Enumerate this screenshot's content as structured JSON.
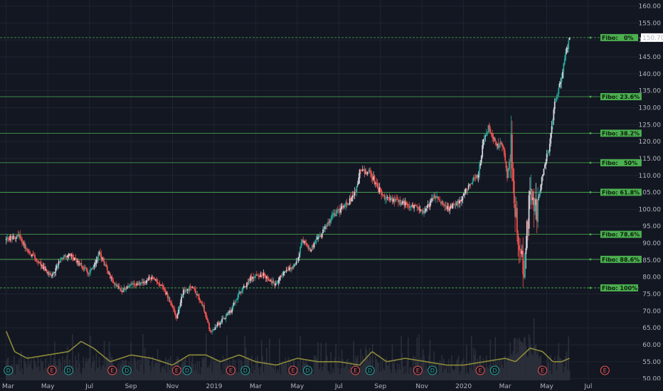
{
  "chart_data": {
    "type": "candlestick",
    "price_axis": {
      "ticks": [
        50,
        55,
        60,
        65,
        70,
        75,
        80,
        85,
        90,
        95,
        100,
        105,
        110,
        115,
        120,
        125,
        130,
        135,
        140,
        145,
        150,
        155,
        160
      ],
      "tick_labels": [
        "50.00",
        "55.00",
        "60.00",
        "65.00",
        "70.00",
        "75.00",
        "80.00",
        "85.00",
        "90.00",
        "95.00",
        "100.00",
        "105.00",
        "110.00",
        "115.00",
        "120.00",
        "125.00",
        "130.00",
        "135.00",
        "140.00",
        "145.00",
        "150.00",
        "155.00",
        "160.00"
      ],
      "ylim": [
        49.5,
        161.8
      ]
    },
    "time_axis": {
      "labels": [
        "Mar",
        "May",
        "Jul",
        "Sep",
        "Nov",
        "2019",
        "Mar",
        "May",
        "Jul",
        "Sep",
        "Nov",
        "2020",
        "Mar",
        "May",
        "Jul"
      ],
      "label_months": [
        0,
        2,
        4,
        6,
        8,
        10,
        12,
        14,
        16,
        18,
        20,
        22,
        24,
        26,
        28
      ],
      "xlim_months": [
        -0.3,
        30.5
      ]
    },
    "last_price": {
      "value": 150.7,
      "label": "150.70"
    },
    "fibonacci": {
      "low": 76.8,
      "high": 150.7,
      "levels": [
        {
          "label": "Fibo:   0%",
          "ratio": 0
        },
        {
          "label": "Fibo: 23.6%",
          "ratio": 0.236
        },
        {
          "label": "Fibo: 38.2%",
          "ratio": 0.382
        },
        {
          "label": "Fibo:   50%",
          "ratio": 0.5
        },
        {
          "label": "Fibo: 61.8%",
          "ratio": 0.618
        },
        {
          "label": "Fibo: 78.6%",
          "ratio": 0.786
        },
        {
          "label": "Fibo: 88.6%",
          "ratio": 0.886
        },
        {
          "label": "Fibo: 100%",
          "ratio": 1.0
        }
      ]
    },
    "close_anchors": [
      [
        0.0,
        91
      ],
      [
        0.6,
        92.5
      ],
      [
        1.0,
        88
      ],
      [
        1.6,
        84
      ],
      [
        2.2,
        80
      ],
      [
        2.6,
        85
      ],
      [
        3.0,
        87
      ],
      [
        3.5,
        84
      ],
      [
        4.0,
        81
      ],
      [
        4.5,
        87
      ],
      [
        5.0,
        80
      ],
      [
        5.5,
        76
      ],
      [
        6.0,
        78
      ],
      [
        6.5,
        78
      ],
      [
        7.0,
        80
      ],
      [
        7.5,
        77
      ],
      [
        7.8,
        74
      ],
      [
        8.2,
        68
      ],
      [
        8.5,
        76
      ],
      [
        9.0,
        77
      ],
      [
        9.5,
        71
      ],
      [
        9.8,
        64
      ],
      [
        10.2,
        66
      ],
      [
        10.8,
        70
      ],
      [
        11.2,
        75
      ],
      [
        11.8,
        80
      ],
      [
        12.3,
        81
      ],
      [
        12.9,
        78
      ],
      [
        13.5,
        82
      ],
      [
        14.0,
        84
      ],
      [
        14.2,
        91
      ],
      [
        14.6,
        88
      ],
      [
        15.2,
        93
      ],
      [
        15.7,
        98
      ],
      [
        16.3,
        101
      ],
      [
        16.8,
        105
      ],
      [
        17.0,
        111
      ],
      [
        17.5,
        111
      ],
      [
        17.9,
        106
      ],
      [
        18.3,
        103
      ],
      [
        18.9,
        102
      ],
      [
        19.5,
        101
      ],
      [
        20.1,
        99
      ],
      [
        20.6,
        104
      ],
      [
        21.2,
        100
      ],
      [
        21.8,
        102
      ],
      [
        22.3,
        108
      ],
      [
        22.7,
        110
      ],
      [
        23.0,
        122
      ],
      [
        23.2,
        124
      ],
      [
        23.6,
        119
      ],
      [
        23.9,
        119
      ],
      [
        24.1,
        110
      ],
      [
        24.3,
        118
      ],
      [
        24.6,
        91
      ],
      [
        24.9,
        82
      ],
      [
        25.2,
        105
      ],
      [
        25.5,
        99
      ],
      [
        25.8,
        110
      ],
      [
        26.1,
        118
      ],
      [
        26.4,
        132
      ],
      [
        26.7,
        138
      ],
      [
        26.9,
        145
      ],
      [
        27.1,
        150.7
      ]
    ],
    "volume_ma_anchors": [
      [
        0.0,
        64
      ],
      [
        0.4,
        58
      ],
      [
        1.0,
        56
      ],
      [
        2.0,
        57
      ],
      [
        3.0,
        58
      ],
      [
        3.6,
        61
      ],
      [
        4.2,
        59
      ],
      [
        5.0,
        55
      ],
      [
        6.0,
        57
      ],
      [
        7.0,
        56
      ],
      [
        8.0,
        54
      ],
      [
        8.8,
        57
      ],
      [
        9.6,
        57
      ],
      [
        10.3,
        55
      ],
      [
        11.2,
        57
      ],
      [
        12.0,
        55
      ],
      [
        13.0,
        54
      ],
      [
        14.0,
        56
      ],
      [
        15.0,
        55
      ],
      [
        16.0,
        55
      ],
      [
        17.0,
        54
      ],
      [
        17.6,
        58
      ],
      [
        18.3,
        55
      ],
      [
        19.2,
        56
      ],
      [
        20.2,
        55
      ],
      [
        21.2,
        54
      ],
      [
        22.0,
        54
      ],
      [
        23.0,
        55
      ],
      [
        24.0,
        56
      ],
      [
        24.5,
        55
      ],
      [
        25.2,
        59
      ],
      [
        25.8,
        58
      ],
      [
        26.3,
        55
      ],
      [
        26.7,
        55
      ],
      [
        27.1,
        56
      ]
    ],
    "event_markers": [
      {
        "label": "D",
        "type": "dividend",
        "month": 0.1
      },
      {
        "label": "E",
        "type": "earnings",
        "month": 2.2
      },
      {
        "label": "D",
        "type": "dividend",
        "month": 3.0
      },
      {
        "label": "E",
        "type": "earnings",
        "month": 5.1
      },
      {
        "label": "D",
        "type": "dividend",
        "month": 5.8
      },
      {
        "label": "E",
        "type": "earnings",
        "month": 8.2
      },
      {
        "label": "D",
        "type": "dividend",
        "month": 8.7
      },
      {
        "label": "E",
        "type": "earnings",
        "month": 10.8
      },
      {
        "label": "D",
        "type": "dividend",
        "month": 11.5
      },
      {
        "label": "E",
        "type": "earnings",
        "month": 13.8
      },
      {
        "label": "D",
        "type": "dividend",
        "month": 14.5
      },
      {
        "label": "E",
        "type": "earnings",
        "month": 16.8
      },
      {
        "label": "D",
        "type": "dividend",
        "month": 17.5
      },
      {
        "label": "E",
        "type": "earnings",
        "month": 19.8
      },
      {
        "label": "D",
        "type": "dividend",
        "month": 20.5
      },
      {
        "label": "E",
        "type": "earnings",
        "month": 22.8
      },
      {
        "label": "D",
        "type": "dividend",
        "month": 23.5
      },
      {
        "label": "E",
        "type": "earnings",
        "month": 25.8
      },
      {
        "label": "E",
        "type": "earnings",
        "month": 28.8
      }
    ],
    "colors": {
      "background": "#131722",
      "grid": "#1f2433",
      "up": "#26a69a",
      "up_light": "#d1d4dc",
      "down": "#ef5350",
      "fibo": "#4caf50",
      "fibo_label_bg": "#4caf50",
      "last_price_bg": "#ffffff",
      "volume": "#2a2e39",
      "volume_ma": "#8d8a3a",
      "earnings": "#ef5350",
      "dividend": "#26a69a"
    }
  }
}
